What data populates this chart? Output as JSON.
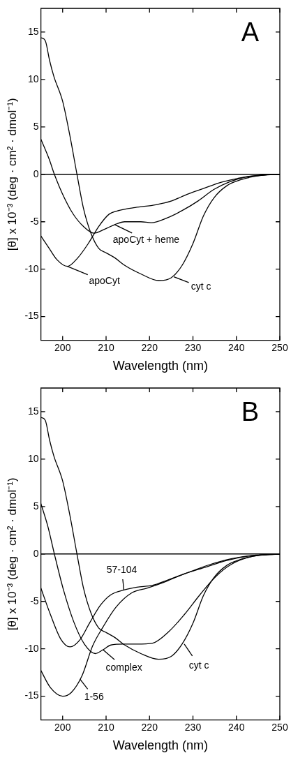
{
  "chart_data": [
    {
      "type": "line",
      "title": "A",
      "xlabel": "Wavelength (nm)",
      "ylabel": "[θ] x 10⁻³ (deg · cm² · dmol⁻¹)",
      "xlim": [
        195,
        250
      ],
      "xticks": [
        200,
        210,
        220,
        230,
        240,
        250
      ],
      "ylim": [
        -17.5,
        17.5
      ],
      "yticks": [
        -15,
        -10,
        -5,
        0,
        5,
        10,
        15
      ],
      "marker": "none",
      "series": [
        {
          "color": "#000000",
          "x": [
            195,
            196,
            197,
            198,
            200,
            201.7,
            203.3,
            204.8,
            206.5,
            208.3,
            210.1,
            212,
            214.3,
            218,
            222.1,
            225,
            227.5,
            230,
            232.4,
            234.8,
            237.8,
            240.8,
            243.8,
            246.8,
            250
          ],
          "values": [
            14.4,
            14.1,
            12.0,
            10.3,
            7.7,
            4.0,
            0,
            -3.6,
            -6.2,
            -7.8,
            -8.3,
            -8.8,
            -9.6,
            -10.5,
            -11.2,
            -10.9,
            -9.6,
            -7.3,
            -4.4,
            -2.5,
            -1.2,
            -0.6,
            -0.25,
            -0.05,
            0
          ]
        },
        {
          "color": "#000000",
          "x": [
            195,
            196.9,
            198.1,
            199.9,
            202.3,
            204.8,
            207.2,
            209.6,
            212,
            214.3,
            218,
            220.4,
            224,
            227.6,
            231.2,
            234.8,
            238.4,
            242,
            246,
            250
          ],
          "values": [
            3.7,
            1.6,
            0,
            -2.0,
            -4.1,
            -5.5,
            -6.2,
            -5.8,
            -5.3,
            -5.0,
            -5.0,
            -5.1,
            -4.6,
            -3.8,
            -2.8,
            -1.6,
            -0.8,
            -0.3,
            -0.1,
            0
          ]
        },
        {
          "color": "#000000",
          "x": [
            195,
            196.9,
            198.7,
            201.1,
            203.5,
            205.9,
            208.3,
            210.7,
            213.1,
            216.7,
            221.5,
            225.1,
            228.7,
            232.4,
            236,
            239.6,
            243.2,
            246.5,
            250
          ],
          "values": [
            -6.5,
            -7.8,
            -9.0,
            -9.7,
            -8.8,
            -7.3,
            -5.5,
            -4.2,
            -3.8,
            -3.5,
            -3.2,
            -2.8,
            -2.1,
            -1.5,
            -0.9,
            -0.5,
            -0.2,
            -0.05,
            0
          ]
        }
      ],
      "ref_lines": [
        {
          "axis": "y",
          "value": 0,
          "color": "#000000"
        }
      ],
      "annotations": [
        {
          "text": "apoCyt + heme",
          "x": 212,
          "y": -5.3
        },
        {
          "text": "apoCyt",
          "x": 201.1,
          "y": -9.7
        },
        {
          "text": "cyt c",
          "x": 225.6,
          "y": -10.8
        }
      ]
    },
    {
      "type": "line",
      "title": "B",
      "xlabel": "Wavelength (nm)",
      "ylabel": "[θ] x 10⁻³ (deg · cm² · dmol⁻¹)",
      "xlim": [
        195,
        250
      ],
      "xticks": [
        200,
        210,
        220,
        230,
        240,
        250
      ],
      "ylim": [
        -17.5,
        17.5
      ],
      "yticks": [
        -15,
        -10,
        -5,
        0,
        5,
        10,
        15
      ],
      "marker": "none",
      "series": [
        {
          "color": "#000000",
          "x": [
            195,
            196,
            197,
            198,
            200,
            201.7,
            203.3,
            204.8,
            206.5,
            208.3,
            210.1,
            212,
            214.3,
            218,
            222.1,
            225,
            227.5,
            230,
            232.4,
            234.8,
            237.8,
            240.8,
            243.8,
            246.8,
            250
          ],
          "values": [
            14.4,
            14.1,
            12.0,
            10.3,
            7.7,
            4.0,
            0,
            -3.6,
            -6.2,
            -7.8,
            -8.3,
            -8.8,
            -9.6,
            -10.5,
            -11.1,
            -10.8,
            -9.5,
            -7.3,
            -4.4,
            -2.5,
            -1.2,
            -0.6,
            -0.25,
            -0.05,
            0
          ]
        },
        {
          "color": "#000000",
          "x": [
            195,
            197.2,
            199.6,
            201.7,
            203.9,
            206.3,
            208.7,
            211.1,
            214.1,
            217.1,
            220.7,
            224.4,
            229.2,
            234,
            238.8,
            243.7,
            250
          ],
          "values": [
            -3.6,
            -6.4,
            -9.0,
            -9.8,
            -9.1,
            -7.2,
            -5.4,
            -4.3,
            -3.8,
            -3.5,
            -3.3,
            -2.7,
            -1.9,
            -1.1,
            -0.5,
            -0.15,
            0
          ]
        },
        {
          "color": "#000000",
          "x": [
            195,
            196.6,
            198.1,
            200.2,
            202.6,
            205,
            207.5,
            209.3,
            211.1,
            214.1,
            217.1,
            220.7,
            224.4,
            228,
            231.6,
            235.2,
            238.8,
            243.7,
            250
          ],
          "values": [
            5.3,
            2.9,
            0,
            -3.8,
            -7.2,
            -9.5,
            -10.5,
            -10.1,
            -9.6,
            -9.5,
            -9.5,
            -9.4,
            -8.2,
            -6.4,
            -4.3,
            -2.4,
            -1.1,
            -0.25,
            0
          ]
        },
        {
          "color": "#000000",
          "x": [
            195,
            197.2,
            200,
            202,
            204.5,
            206.9,
            209.3,
            212.3,
            215.9,
            219.5,
            223.2,
            228,
            232.8,
            237.6,
            242.5,
            250
          ],
          "values": [
            -12.3,
            -14.1,
            -15.0,
            -14.6,
            -12.8,
            -9.7,
            -7.7,
            -5.6,
            -4.1,
            -3.6,
            -3.0,
            -2.1,
            -1.4,
            -0.7,
            -0.25,
            0
          ]
        }
      ],
      "ref_lines": [
        {
          "axis": "y",
          "value": 0,
          "color": "#000000"
        }
      ],
      "annotations": [
        {
          "text": "57-104",
          "x": 214.1,
          "y": -3.8
        },
        {
          "text": "complex",
          "x": 209.3,
          "y": -10.1
        },
        {
          "text": "cyt c",
          "x": 228,
          "y": -9.5
        },
        {
          "text": "1-56",
          "x": 204,
          "y": -13.2
        }
      ]
    }
  ]
}
